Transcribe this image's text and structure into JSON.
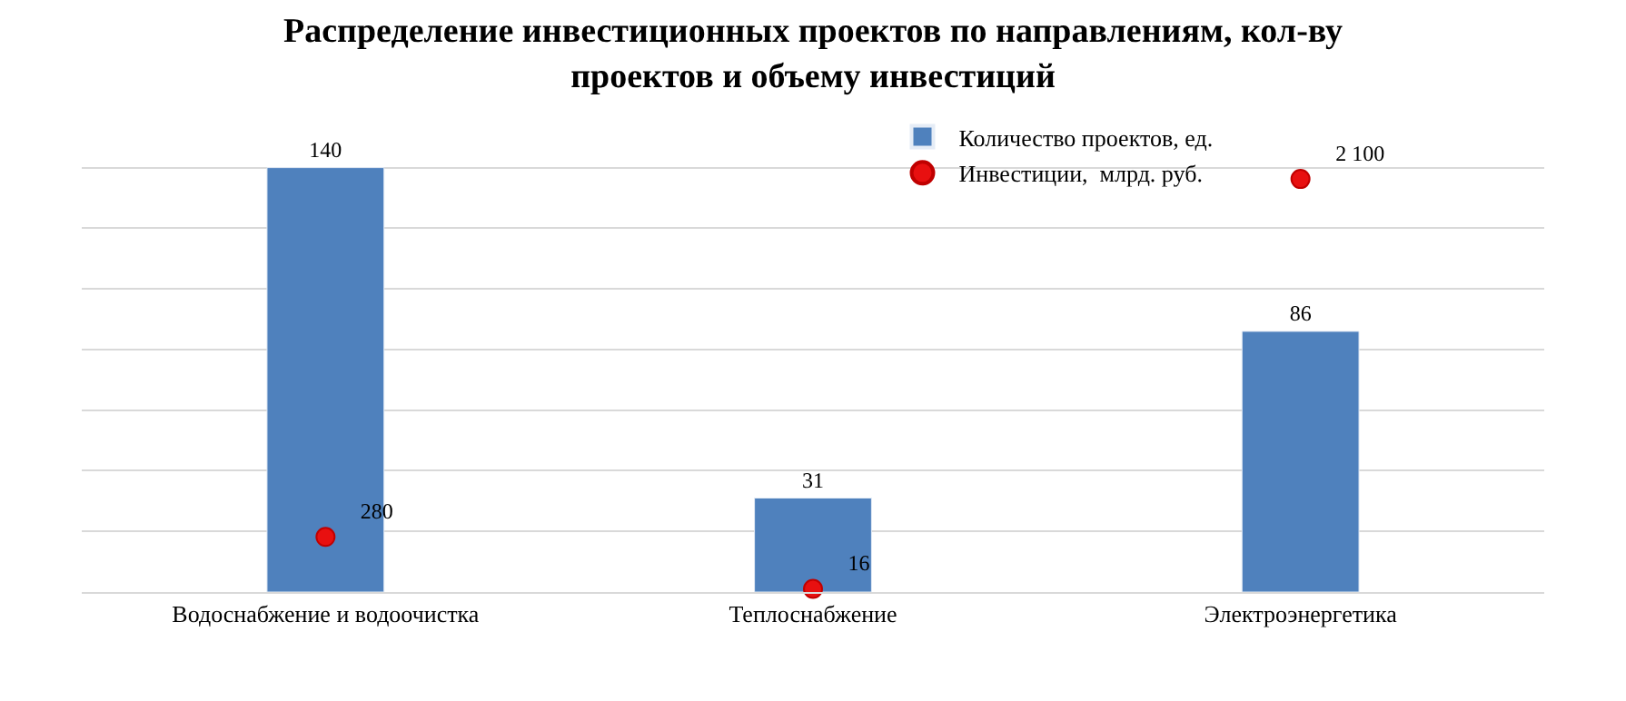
{
  "chart_data": {
    "type": "bar",
    "title": "Распределение инвестиционных проектов по направлениям, кол-ву\nпроектов и объему инвестиций",
    "categories": [
      "Водоснабжение и водоочистка",
      "Теплоснабжение",
      "Электроэнергетика"
    ],
    "series": [
      {
        "name": "Количество проектов, ед.",
        "color": "#4f81bd",
        "values": [
          140,
          31,
          86
        ]
      },
      {
        "name": "Инвестиции,  млрд. руб.",
        "type": "scatter",
        "axis": "y2",
        "color": "#e81010",
        "marker": "circle",
        "values": [
          280,
          16,
          2100
        ]
      }
    ],
    "yticks": [
      {
        "value": 0,
        "label": null
      },
      {
        "value": 20,
        "label": null
      },
      {
        "value": 40,
        "label": null
      },
      {
        "value": 60,
        "label": null
      },
      {
        "value": 80,
        "label": null
      },
      {
        "value": 100,
        "label": null
      },
      {
        "value": 120,
        "label": null
      },
      {
        "value": 140,
        "label": null
      }
    ],
    "tick_labels": "x",
    "grid": "y",
    "legend": "top right",
    "data_labels": true
  }
}
